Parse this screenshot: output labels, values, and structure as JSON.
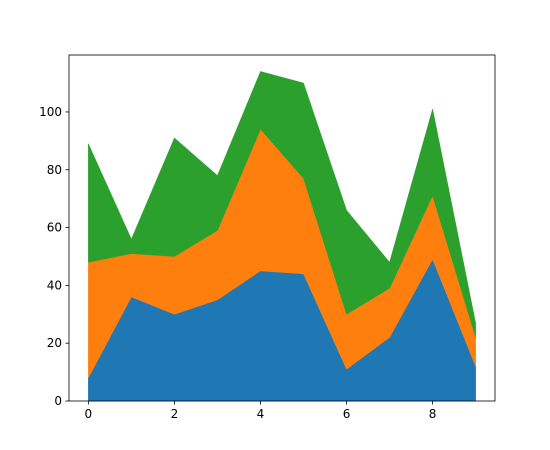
{
  "chart_data": {
    "type": "stacked_area",
    "x": [
      0,
      1,
      2,
      3,
      4,
      5,
      6,
      7,
      8,
      9
    ],
    "series": [
      {
        "color": "#1f77b4",
        "values": [
          8,
          36,
          30,
          35,
          45,
          44,
          11,
          22,
          49,
          12
        ]
      },
      {
        "color": "#ff7f0e",
        "values": [
          40,
          15,
          20,
          24,
          49,
          33,
          19,
          17,
          22,
          10
        ]
      },
      {
        "color": "#2ca02c",
        "values": [
          41,
          5,
          41,
          19,
          20,
          33,
          36,
          9,
          30,
          5
        ]
      }
    ],
    "xlim": [
      -0.45,
      9.45
    ],
    "xticks": [
      0,
      2,
      4,
      6,
      8
    ],
    "ylim": [
      0,
      119.7
    ],
    "yticks": [
      0,
      20,
      40,
      60,
      80,
      100
    ]
  }
}
